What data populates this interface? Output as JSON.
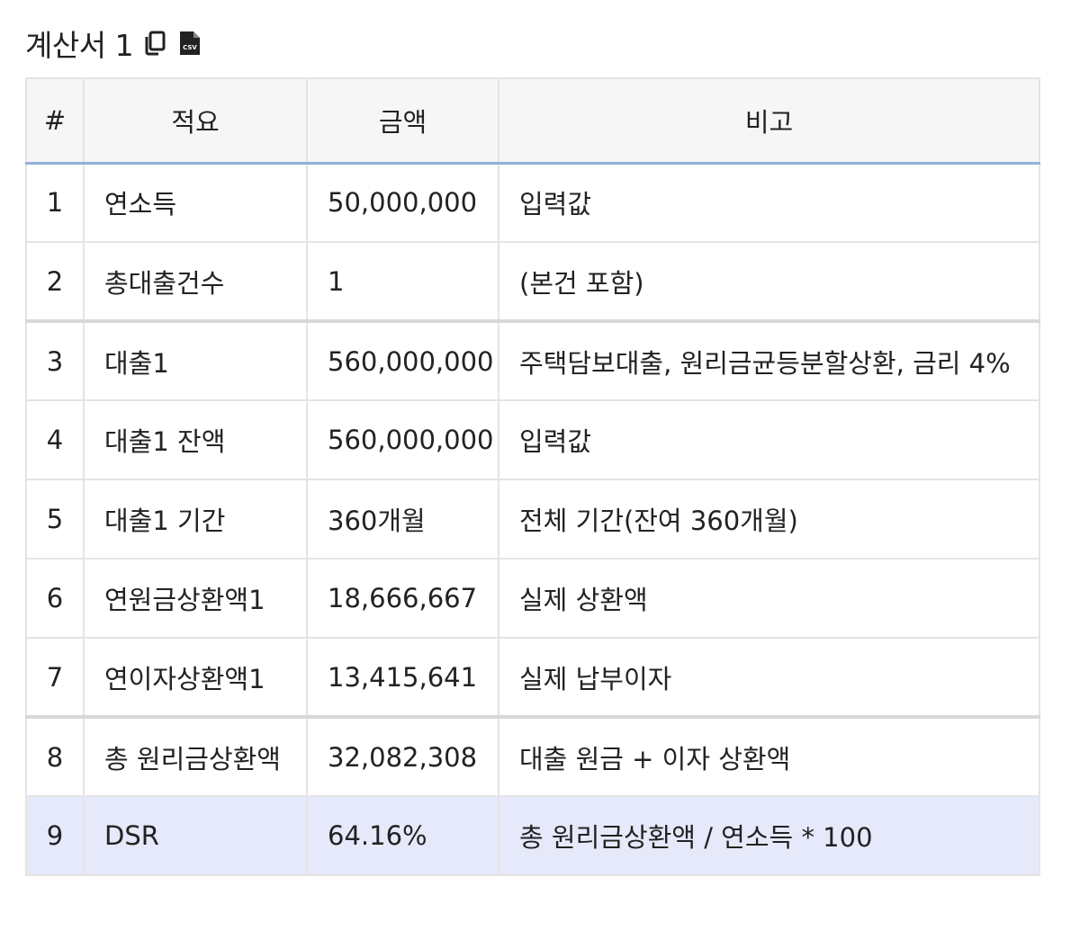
{
  "title": "계산서 1",
  "icons": {
    "copy": "copy-icon",
    "csv": "csv-file-icon"
  },
  "table": {
    "headers": [
      "#",
      "적요",
      "금액",
      "비고"
    ],
    "rows": [
      [
        "1",
        "연소득",
        "50,000,000",
        "입력값"
      ],
      [
        "2",
        "총대출건수",
        "1",
        "(본건 포함)"
      ],
      [
        "3",
        "대출1",
        "560,000,000",
        "주택담보대출, 원리금균등분할상환, 금리 4%"
      ],
      [
        "4",
        "대출1 잔액",
        "560,000,000",
        "입력값"
      ],
      [
        "5",
        "대출1 기간",
        "360개월",
        "전체 기간(잔여 360개월)"
      ],
      [
        "6",
        "연원금상환액1",
        "18,666,667",
        "실제 상환액"
      ],
      [
        "7",
        "연이자상환액1",
        "13,415,641",
        "실제 납부이자"
      ],
      [
        "8",
        "총 원리금상환액",
        "32,082,308",
        "대출 원금 + 이자 상환액"
      ],
      [
        "9",
        "DSR",
        "64.16%",
        "총 원리금상환액 / 연소득 * 100"
      ]
    ]
  },
  "colors": {
    "header_bg": "#f6f6f6",
    "header_rule": "#8fb3d9",
    "highlight_row": "#e6e9fa"
  }
}
